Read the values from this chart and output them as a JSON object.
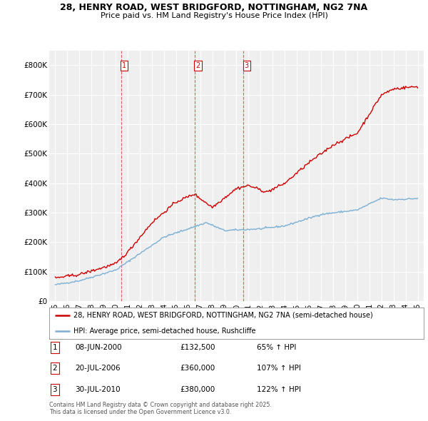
{
  "title_line1": "28, HENRY ROAD, WEST BRIDGFORD, NOTTINGHAM, NG2 7NA",
  "title_line2": "Price paid vs. HM Land Registry's House Price Index (HPI)",
  "hpi_label": "HPI: Average price, semi-detached house, Rushcliffe",
  "property_label": "28, HENRY ROAD, WEST BRIDGFORD, NOTTINGHAM, NG2 7NA (semi-detached house)",
  "footer_line1": "Contains HM Land Registry data © Crown copyright and database right 2025.",
  "footer_line2": "This data is licensed under the Open Government Licence v3.0.",
  "sale_markers": [
    {
      "num": 1,
      "date": "08-JUN-2000",
      "price": 132500,
      "hpi_pct": "65% ↑ HPI",
      "x": 2000.44
    },
    {
      "num": 2,
      "date": "20-JUL-2006",
      "price": 360000,
      "hpi_pct": "107% ↑ HPI",
      "x": 2006.55
    },
    {
      "num": 3,
      "date": "30-JUL-2010",
      "price": 380000,
      "hpi_pct": "122% ↑ HPI",
      "x": 2010.57
    }
  ],
  "property_color": "#cc0000",
  "hpi_color": "#7bafd4",
  "marker_line_color": "#cc0000",
  "background_color": "#ffffff",
  "plot_bg_color": "#efefef",
  "ylim": [
    0,
    850000
  ],
  "xlim": [
    1994.5,
    2025.5
  ],
  "yticks": [
    0,
    100000,
    200000,
    300000,
    400000,
    500000,
    600000,
    700000,
    800000
  ],
  "ytick_labels": [
    "£0",
    "£100K",
    "£200K",
    "£300K",
    "£400K",
    "£500K",
    "£600K",
    "£700K",
    "£800K"
  ],
  "xtick_labels": [
    "95",
    "96",
    "97",
    "98",
    "99",
    "00",
    "01",
    "02",
    "03",
    "04",
    "05",
    "06",
    "07",
    "08",
    "09",
    "10",
    "11",
    "12",
    "13",
    "14",
    "15",
    "16",
    "17",
    "18",
    "19",
    "20",
    "21",
    "22",
    "23",
    "24",
    "25"
  ],
  "xticks": [
    1995,
    1996,
    1997,
    1998,
    1999,
    2000,
    2001,
    2002,
    2003,
    2004,
    2005,
    2006,
    2007,
    2008,
    2009,
    2010,
    2011,
    2012,
    2013,
    2014,
    2015,
    2016,
    2017,
    2018,
    2019,
    2020,
    2021,
    2022,
    2023,
    2024,
    2025
  ]
}
